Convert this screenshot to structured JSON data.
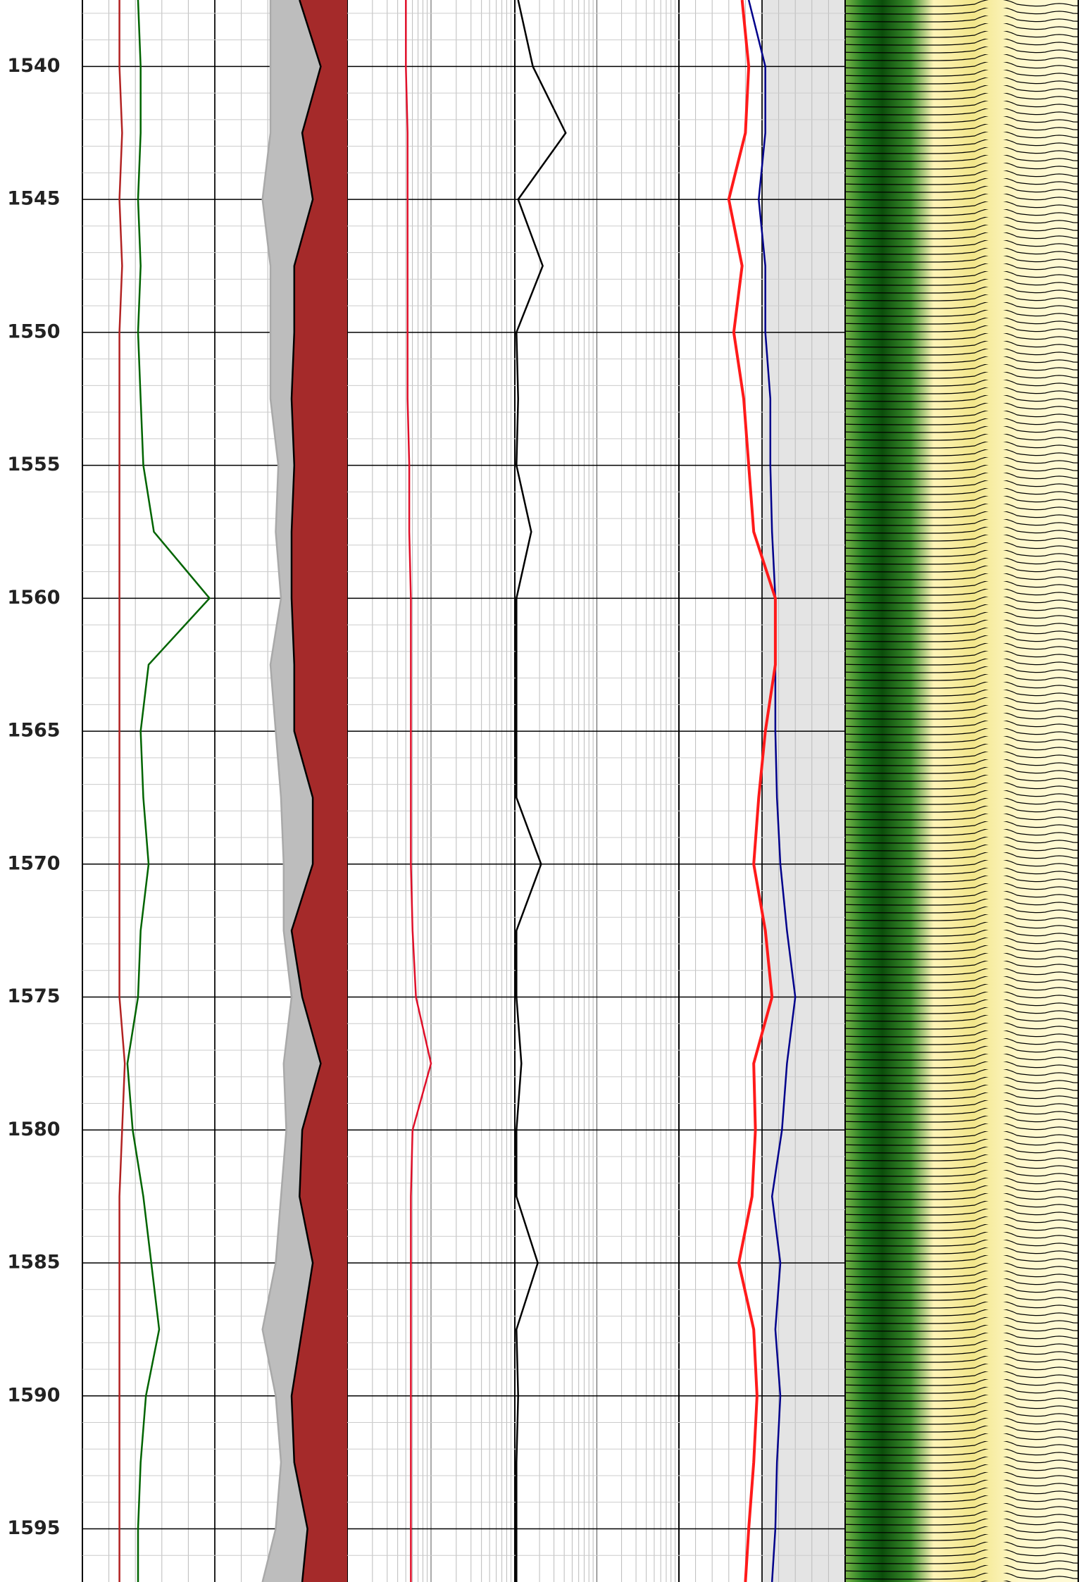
{
  "chart_data": {
    "type": "well-log",
    "ylim": [
      1537.5,
      1597
    ],
    "yticks": [
      1540,
      1545,
      1550,
      1555,
      1560,
      1565,
      1570,
      1575,
      1580,
      1585,
      1590,
      1595
    ],
    "minor_yticks": [
      1538,
      1539,
      1541,
      1542,
      1543,
      1544,
      1546,
      1547,
      1548,
      1549,
      1551,
      1552,
      1553,
      1554,
      1556,
      1557,
      1558,
      1559,
      1561,
      1562,
      1563,
      1564,
      1566,
      1567,
      1568,
      1569,
      1571,
      1572,
      1573,
      1574,
      1576,
      1577,
      1578,
      1579,
      1581,
      1582,
      1583,
      1584,
      1586,
      1587,
      1588,
      1589,
      1591,
      1592,
      1593,
      1594,
      1596
    ],
    "depths": [
      1537.5,
      1540,
      1542.5,
      1545,
      1547.5,
      1550,
      1552.5,
      1555,
      1557.5,
      1560,
      1562.5,
      1565,
      1567.5,
      1570,
      1572.5,
      1575,
      1577.5,
      1580,
      1582.5,
      1585,
      1587.5,
      1590,
      1592.5,
      1595,
      1597
    ],
    "tracks": [
      {
        "xlim": [
          0,
          100
        ],
        "grid": "linear",
        "series": [
          {
            "color": "#a9a9a9",
            "fill": "#bdbdbd",
            "values": [
              71,
              71,
              71,
              68,
              71,
              71,
              71,
              74,
              73,
              75,
              71,
              73,
              75,
              76,
              76,
              79,
              76,
              77,
              75,
              73,
              68,
              73,
              75,
              73,
              68
            ]
          },
          {
            "color": "#000000",
            "fill": "#a52a2a",
            "values": [
              82,
              90,
              83,
              87,
              80,
              80,
              79,
              80,
              79,
              79,
              80,
              80,
              87,
              87,
              79,
              83,
              90,
              83,
              82,
              87,
              83,
              79,
              80,
              85,
              83
            ]
          },
          {
            "color": "#b22222",
            "values": [
              14,
              14,
              15,
              14,
              15,
              14,
              14,
              14,
              14,
              14,
              14,
              14,
              14,
              14,
              14,
              14,
              16,
              15,
              14,
              14,
              14,
              14,
              14,
              14,
              14
            ]
          },
          {
            "color": "#006400",
            "values": [
              21,
              22,
              22,
              21,
              22,
              21,
              22,
              23,
              27,
              48,
              25,
              22,
              23,
              25,
              22,
              21,
              17,
              19,
              23,
              26,
              29,
              24,
              22,
              21,
              21
            ]
          }
        ]
      },
      {
        "xlim": [
          0,
          100
        ],
        "grid": "log",
        "series": [
          {
            "color": "#e0102a",
            "values": [
              35,
              35,
              36,
              36,
              36,
              36,
              36,
              37,
              37,
              38,
              38,
              38,
              38,
              38,
              39,
              41,
              50,
              39,
              38,
              38,
              38,
              38,
              38,
              38,
              38
            ]
          }
        ]
      },
      {
        "xlim": [
          0,
          100
        ],
        "grid": "log",
        "series": [
          {
            "color": "#000000",
            "values": [
              2,
              11,
              31,
              2,
              17,
              1,
              2,
              1,
              10,
              1,
              1,
              1,
              1,
              16,
              1,
              1,
              4,
              1,
              1,
              14,
              1,
              2,
              1,
              1,
              1
            ]
          }
        ]
      },
      {
        "xlim": [
          0,
          100
        ],
        "grid": "linear",
        "series": [
          {
            "color": "#00008b",
            "values": [
              42,
              52,
              52,
              48,
              52,
              52,
              55,
              55,
              56,
              58,
              58,
              58,
              59,
              61,
              65,
              70,
              65,
              62,
              56,
              61,
              58,
              61,
              59,
              58,
              56
            ]
          },
          {
            "color": "#ff1a1a",
            "values": [
              38,
              42,
              40,
              30,
              38,
              33,
              39,
              42,
              45,
              58,
              58,
              52,
              48,
              45,
              52,
              56,
              45,
              46,
              44,
              36,
              45,
              47,
              45,
              42,
              40
            ]
          }
        ]
      }
    ]
  }
}
